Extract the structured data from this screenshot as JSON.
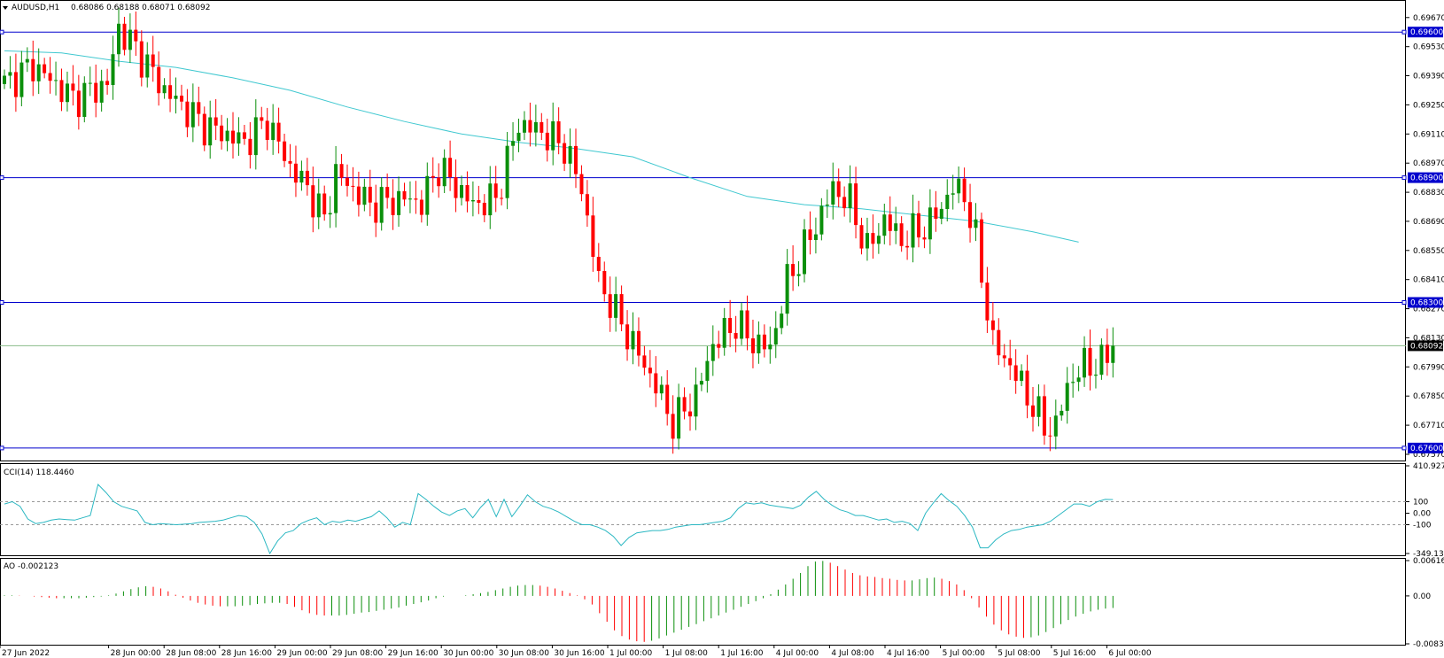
{
  "header": {
    "symbol": "AUDUSD,H1",
    "ohlc": "0.68086 0.68188 0.68071 0.68092"
  },
  "colors": {
    "bull": "#0b8f0b",
    "bear": "#ff0000",
    "ma": "#40c8d0",
    "level_line": "#0000cd",
    "cci": "#2ab7c2",
    "price_line": "#88bb88",
    "grid": "#000000",
    "bg": "#ffffff"
  },
  "chart_data": [
    {
      "type": "candlestick",
      "panel": "main",
      "x_labels": [
        "27 Jun 2022",
        "28 Jun 00:00",
        "28 Jun 08:00",
        "28 Jun 16:00",
        "29 Jun 00:00",
        "29 Jun 08:00",
        "29 Jun 16:00",
        "30 Jun 00:00",
        "30 Jun 08:00",
        "30 Jun 16:00",
        "1 Jul 00:00",
        "1 Jul 08:00",
        "1 Jul 16:00",
        "4 Jul 00:00",
        "4 Jul 08:00",
        "4 Jul 16:00",
        "5 Jul 00:00",
        "5 Jul 08:00",
        "5 Jul 16:00",
        "6 Jul 00:00"
      ],
      "y_ticks": [
        "0.69670",
        "0.69530",
        "0.69390",
        "0.69250",
        "0.69110",
        "0.68970",
        "0.68830",
        "0.68690",
        "0.68550",
        "0.68410",
        "0.68270",
        "0.68130",
        "0.67990",
        "0.67850",
        "0.67710",
        "0.67570"
      ],
      "ylim": [
        0.6754,
        0.6975
      ],
      "levels": [
        "0.69600",
        "0.68900",
        "0.68300",
        "0.67600"
      ],
      "current_price": "0.68092",
      "ma_series": [
        [
          0,
          0.6951
        ],
        [
          10,
          0.695
        ],
        [
          20,
          0.6946
        ],
        [
          30,
          0.6943
        ],
        [
          40,
          0.6938
        ],
        [
          50,
          0.6932
        ],
        [
          60,
          0.6924
        ],
        [
          70,
          0.6917
        ],
        [
          80,
          0.6911
        ],
        [
          90,
          0.6907
        ],
        [
          100,
          0.6904
        ],
        [
          110,
          0.69
        ],
        [
          120,
          0.689
        ],
        [
          130,
          0.6881
        ],
        [
          140,
          0.6877
        ],
        [
          150,
          0.6875
        ],
        [
          160,
          0.6872
        ],
        [
          170,
          0.6869
        ],
        [
          180,
          0.6864
        ],
        [
          188,
          0.6859
        ]
      ]
    },
    {
      "type": "line",
      "panel": "indicator",
      "label": "CCI(14) 118.4460",
      "y_ticks": [
        "410.9272",
        "100",
        "0.00",
        "-100",
        "-349.1384"
      ],
      "ylim": [
        -349.1384,
        410.9272
      ],
      "levels": [
        100,
        -100
      ],
      "values": [
        80,
        100,
        60,
        -50,
        -90,
        -80,
        -60,
        -50,
        -55,
        -60,
        -40,
        -20,
        250,
        180,
        100,
        60,
        40,
        20,
        -80,
        -100,
        -90,
        -95,
        -100,
        -95,
        -90,
        -80,
        -75,
        -70,
        -60,
        -40,
        -20,
        -30,
        -80,
        -180,
        -349,
        -240,
        -170,
        -150,
        -90,
        -60,
        -40,
        -100,
        -70,
        -80,
        -60,
        -70,
        -50,
        -30,
        20,
        -40,
        -120,
        -80,
        -100,
        170,
        120,
        60,
        10,
        -20,
        20,
        40,
        -40,
        50,
        120,
        -30,
        120,
        -30,
        60,
        160,
        100,
        60,
        40,
        10,
        -30,
        -70,
        -100,
        -100,
        -120,
        -150,
        -200,
        -280,
        -210,
        -170,
        -160,
        -150,
        -150,
        -140,
        -120,
        -110,
        -100,
        -100,
        -90,
        -80,
        -70,
        -40,
        40,
        90,
        80,
        90,
        70,
        60,
        50,
        40,
        70,
        140,
        190,
        120,
        70,
        30,
        10,
        -20,
        -20,
        -40,
        -60,
        -50,
        -80,
        -70,
        -90,
        -150,
        0,
        90,
        170,
        110,
        60,
        -20,
        -120,
        -300,
        -300,
        -230,
        -180,
        -150,
        -140,
        -120,
        -110,
        -100,
        -70,
        -20,
        30,
        80,
        80,
        60,
        100,
        120,
        118.446
      ]
    },
    {
      "type": "bar",
      "panel": "indicator",
      "label": "AO -0.002123",
      "y_ticks": [
        "0.006163",
        "0.00",
        "-0.008347"
      ],
      "ylim": [
        -0.008347,
        0.006163
      ],
      "values": [
        0.0001,
        0.0001,
        5e-05,
        0,
        -0.0001,
        -0.0002,
        -0.0003,
        -0.0004,
        -0.0004,
        -0.0004,
        -0.0004,
        -0.0003,
        -0.0002,
        -0.0001,
        0.0001,
        0.0004,
        0.0008,
        0.0012,
        0.0015,
        0.0017,
        0.0016,
        0.0013,
        0.0008,
        0.0002,
        -0.0003,
        -0.0008,
        -0.0012,
        -0.0015,
        -0.0017,
        -0.0018,
        -0.0018,
        -0.0018,
        -0.0017,
        -0.0016,
        -0.0014,
        -0.0013,
        -0.0012,
        -0.0012,
        -0.0014,
        -0.0019,
        -0.0025,
        -0.003,
        -0.0033,
        -0.0034,
        -0.0034,
        -0.0034,
        -0.0033,
        -0.0031,
        -0.0029,
        -0.0028,
        -0.0026,
        -0.0024,
        -0.0022,
        -0.002,
        -0.0017,
        -0.0014,
        -0.0011,
        -0.0008,
        -0.0004,
        -0.0001,
        0,
        0,
        0.0001,
        0.0003,
        0.0005,
        0.0007,
        0.001,
        0.0013,
        0.0016,
        0.0018,
        0.0019,
        0.0019,
        0.0018,
        0.0016,
        0.0013,
        0.0009,
        0.0005,
        0.0001,
        -0.0006,
        -0.0015,
        -0.003,
        -0.0045,
        -0.006,
        -0.007,
        -0.0076,
        -0.0079,
        -0.008,
        -0.0078,
        -0.0074,
        -0.0069,
        -0.0064,
        -0.0059,
        -0.0054,
        -0.0049,
        -0.0044,
        -0.0039,
        -0.0034,
        -0.0029,
        -0.0024,
        -0.0019,
        -0.0014,
        -0.0009,
        -0.0004,
        0.0003,
        0.0011,
        0.002,
        0.003,
        0.004,
        0.0052,
        0.006,
        0.0061,
        0.0058,
        0.0052,
        0.0046,
        0.004,
        0.0036,
        0.0034,
        0.0033,
        0.0031,
        0.003,
        0.0028,
        0.0027,
        0.0027,
        0.0029,
        0.0031,
        0.0032,
        0.003,
        0.0026,
        0.002,
        0.001,
        -0.0004,
        -0.002,
        -0.0036,
        -0.005,
        -0.006,
        -0.0067,
        -0.0071,
        -0.0073,
        -0.0072,
        -0.0069,
        -0.0063,
        -0.0056,
        -0.0049,
        -0.0042,
        -0.0036,
        -0.0031,
        -0.0027,
        -0.0024,
        -0.0022,
        -0.0021
      ]
    }
  ]
}
